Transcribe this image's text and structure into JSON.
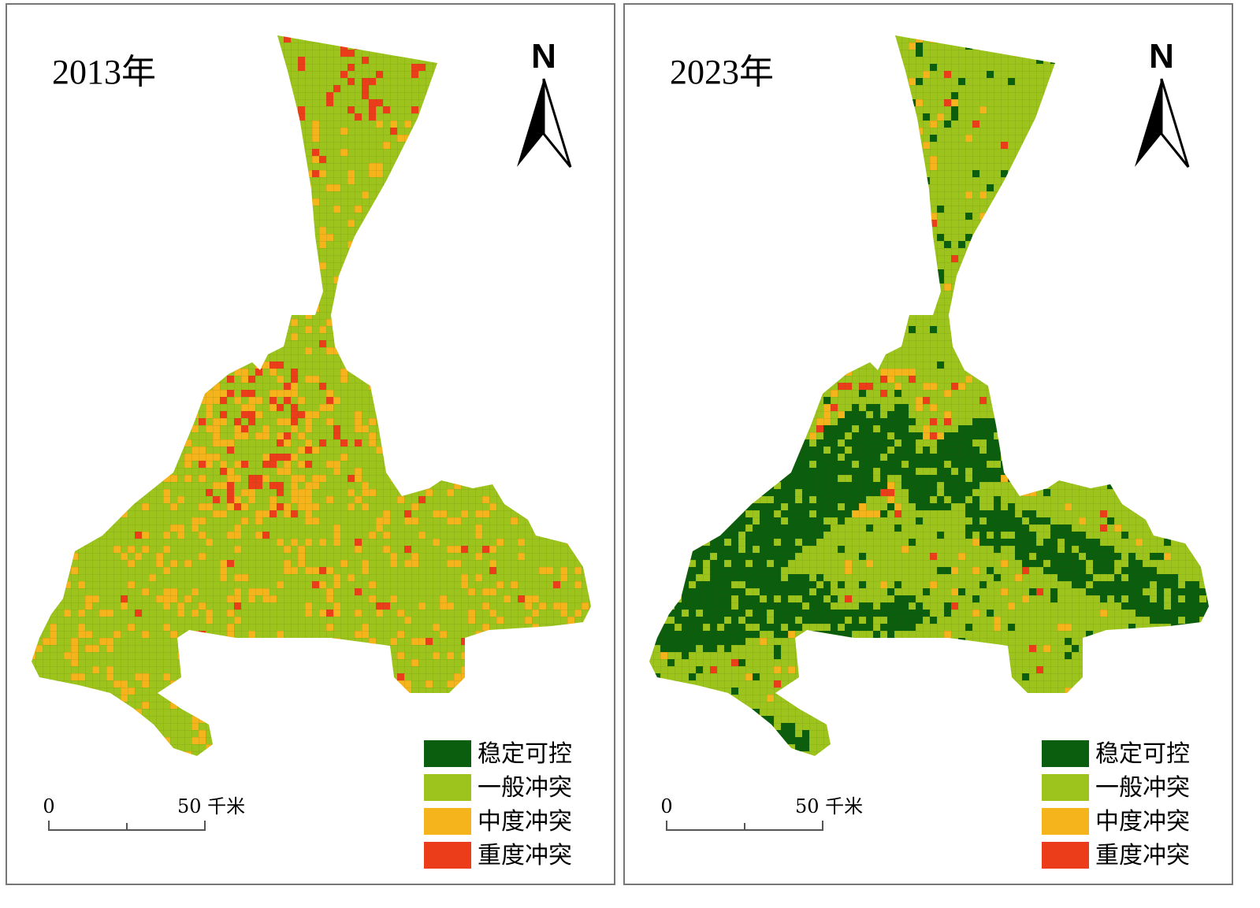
{
  "panels": [
    {
      "title": "2013年",
      "north": "N",
      "scale": {
        "start": "0",
        "end": "50 千米"
      },
      "legend": [
        {
          "label": "稳定可控",
          "color": "#0b5e0e"
        },
        {
          "label": "一般冲突",
          "color": "#9dc41c"
        },
        {
          "label": "中度冲突",
          "color": "#f5b41c"
        },
        {
          "label": "重度冲突",
          "color": "#ec3d1a"
        }
      ]
    },
    {
      "title": "2023年",
      "north": "N",
      "scale": {
        "start": "0",
        "end": "50 千米"
      },
      "legend": [
        {
          "label": "稳定可控",
          "color": "#0b5e0e"
        },
        {
          "label": "一般冲突",
          "color": "#9dc41c"
        },
        {
          "label": "中度冲突",
          "color": "#f5b41c"
        },
        {
          "label": "重度冲突",
          "color": "#ec3d1a"
        }
      ]
    }
  ]
}
